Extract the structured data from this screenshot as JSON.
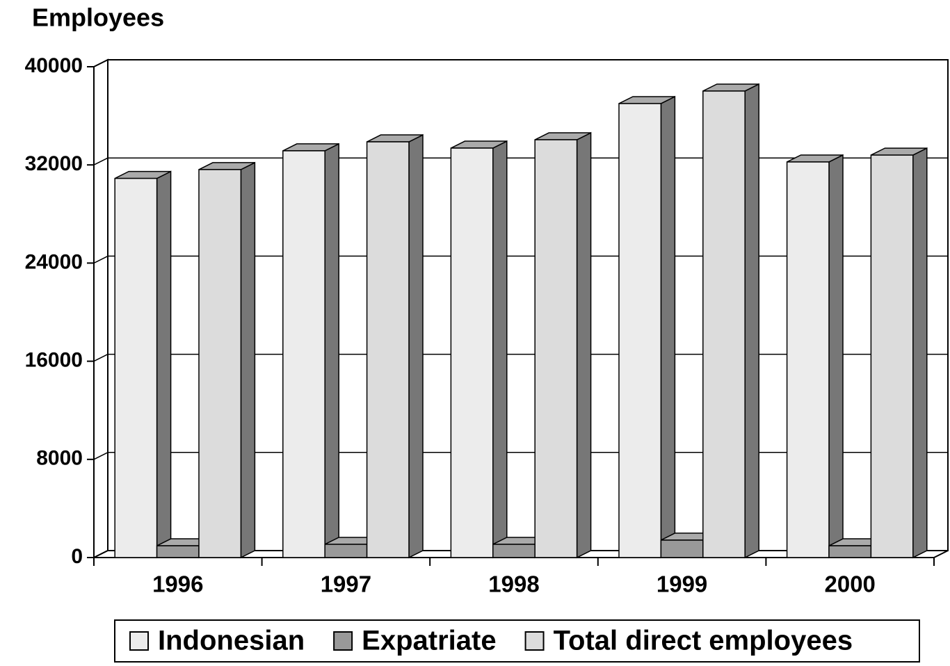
{
  "chart_data": {
    "type": "bar3d",
    "title": "Employees",
    "categories": [
      "1996",
      "1997",
      "1998",
      "1999",
      "2000"
    ],
    "series": [
      {
        "name": "Indonesian",
        "color": "#ececec",
        "values": [
          30900,
          33150,
          33370,
          37000,
          32240
        ]
      },
      {
        "name": "Expatriate",
        "color": "#999999",
        "values": [
          960,
          1080,
          1080,
          1420,
          960
        ]
      },
      {
        "name": "Total direct employees",
        "color": "#dcdcdc",
        "values": [
          31620,
          33880,
          34050,
          38020,
          32800
        ]
      }
    ],
    "ylim": [
      0,
      40000
    ],
    "yticks": [
      0,
      8000,
      16000,
      24000,
      32000,
      40000
    ],
    "grid": true
  }
}
